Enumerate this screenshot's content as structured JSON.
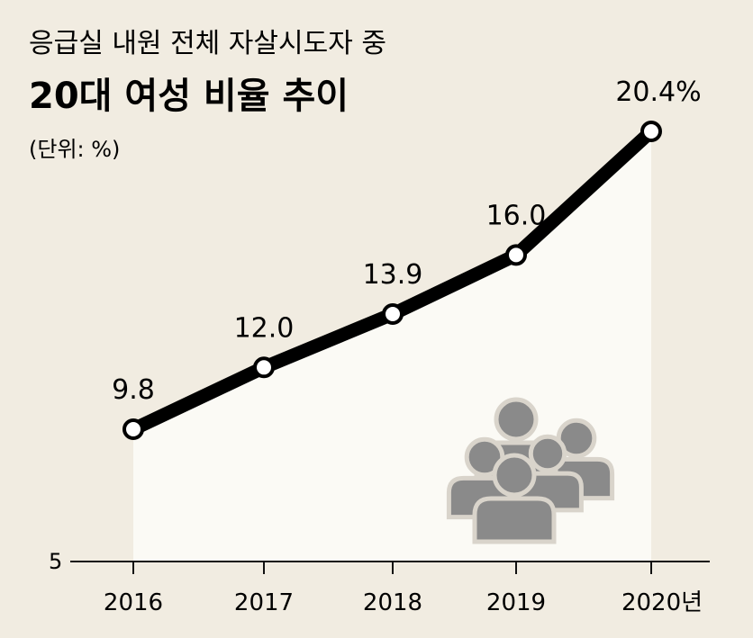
{
  "chart_data": {
    "type": "area",
    "subtitle": "응급실 내원 전체 자살시도자 중",
    "title": "20대 여성 비율 추이",
    "unit_label": "(단위: %)",
    "categories": [
      "2016",
      "2017",
      "2018",
      "2019",
      "2020년"
    ],
    "series": [
      {
        "values": [
          9.8,
          12.0,
          13.9,
          16.0,
          20.4
        ]
      }
    ],
    "data_labels": [
      "9.8",
      "12.0",
      "13.9",
      "16.0",
      "20.4%"
    ],
    "y_axis_label": "5",
    "ylim": [
      5,
      20.4
    ],
    "grid": false,
    "line_color": "#000000",
    "fill_color": "#fbfaf5",
    "icon": "people-group-icon",
    "icon_color": "#8a8a8a"
  }
}
